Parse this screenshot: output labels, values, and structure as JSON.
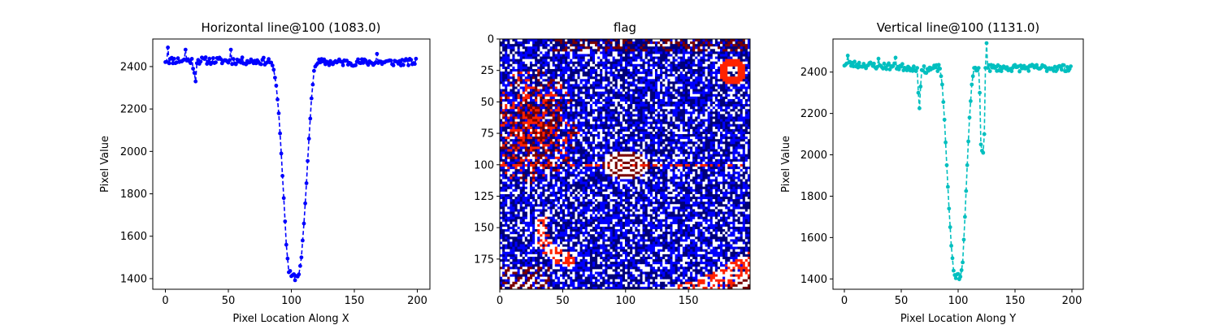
{
  "figure": {
    "background": "#ffffff"
  },
  "chart_data": [
    {
      "type": "line",
      "title": "Horizontal line@100 (1083.0)",
      "xlabel": "Pixel Location Along X",
      "ylabel": "Pixel Value",
      "xlim": [
        -10,
        210
      ],
      "ylim": [
        1350,
        2530
      ],
      "xticks": [
        0,
        50,
        100,
        150,
        200
      ],
      "yticks": [
        1400,
        1600,
        1800,
        2000,
        2200,
        2400
      ],
      "grid": false,
      "series": [
        {
          "color": "#0000ff",
          "linestyle": "dashed",
          "marker": "circle",
          "profile": [
            [
              0,
              2430
            ],
            [
              84,
              2425
            ],
            [
              86,
              2385
            ],
            [
              88,
              2310
            ],
            [
              90,
              2180
            ],
            [
              92,
              1990
            ],
            [
              94,
              1780
            ],
            [
              96,
              1560
            ],
            [
              98,
              1430
            ],
            [
              100,
              1410
            ],
            [
              104,
              1408
            ],
            [
              106,
              1420
            ],
            [
              108,
              1500
            ],
            [
              110,
              1660
            ],
            [
              112,
              1850
            ],
            [
              114,
              2060
            ],
            [
              116,
              2250
            ],
            [
              118,
              2380
            ],
            [
              120,
              2420
            ],
            [
              199,
              2420
            ]
          ],
          "spikes": [
            [
              2,
              2490
            ],
            [
              16,
              2480
            ],
            [
              22,
              2390
            ],
            [
              23,
              2370
            ],
            [
              24,
              2330
            ],
            [
              52,
              2480
            ],
            [
              168,
              2460
            ]
          ],
          "noise": 17
        }
      ]
    },
    {
      "type": "heatmap",
      "title": "flag",
      "xlim": [
        0,
        199
      ],
      "ylim": [
        199,
        0
      ],
      "xticks": [
        0,
        50,
        100,
        150
      ],
      "yticks": [
        0,
        25,
        50,
        75,
        100,
        125,
        150,
        175
      ],
      "colormap": [
        "#ffffff",
        "#0000ff",
        "#00007a",
        "#7a0000",
        "#ff2200"
      ],
      "features": {
        "horizontal_line_row": 100,
        "bullseye_center": [
          100,
          100
        ],
        "small_ring_center": [
          185,
          25
        ],
        "warm_region_center": [
          25,
          70
        ]
      }
    },
    {
      "type": "line",
      "title": "Vertical line@100 (1131.0)",
      "xlabel": "Pixel Location Along Y",
      "ylabel": "Pixel Value",
      "xlim": [
        -10,
        210
      ],
      "ylim": [
        1350,
        2560
      ],
      "xticks": [
        0,
        50,
        100,
        150,
        200
      ],
      "yticks": [
        1400,
        1600,
        1800,
        2000,
        2200,
        2400
      ],
      "grid": false,
      "series": [
        {
          "color": "#00bfbf",
          "linestyle": "dashed",
          "marker": "circle",
          "profile": [
            [
              0,
              2440
            ],
            [
              64,
              2420
            ],
            [
              65,
              2300
            ],
            [
              66,
              2210
            ],
            [
              67,
              2330
            ],
            [
              68,
              2410
            ],
            [
              84,
              2420
            ],
            [
              86,
              2340
            ],
            [
              88,
              2170
            ],
            [
              90,
              1950
            ],
            [
              92,
              1740
            ],
            [
              94,
              1560
            ],
            [
              96,
              1440
            ],
            [
              98,
              1410
            ],
            [
              102,
              1405
            ],
            [
              104,
              1480
            ],
            [
              106,
              1700
            ],
            [
              108,
              1950
            ],
            [
              110,
              2180
            ],
            [
              112,
              2340
            ],
            [
              114,
              2420
            ],
            [
              118,
              2420
            ],
            [
              119,
              2300
            ],
            [
              120,
              2050
            ],
            [
              121,
              2020
            ],
            [
              122,
              2010
            ],
            [
              123,
              2100
            ],
            [
              124,
              2420
            ],
            [
              125,
              2540
            ],
            [
              126,
              2420
            ],
            [
              199,
              2420
            ]
          ],
          "spikes": [
            [
              3,
              2480
            ],
            [
              30,
              2465
            ],
            [
              45,
              2470
            ],
            [
              125,
              2540
            ]
          ],
          "noise": 17
        }
      ]
    }
  ]
}
